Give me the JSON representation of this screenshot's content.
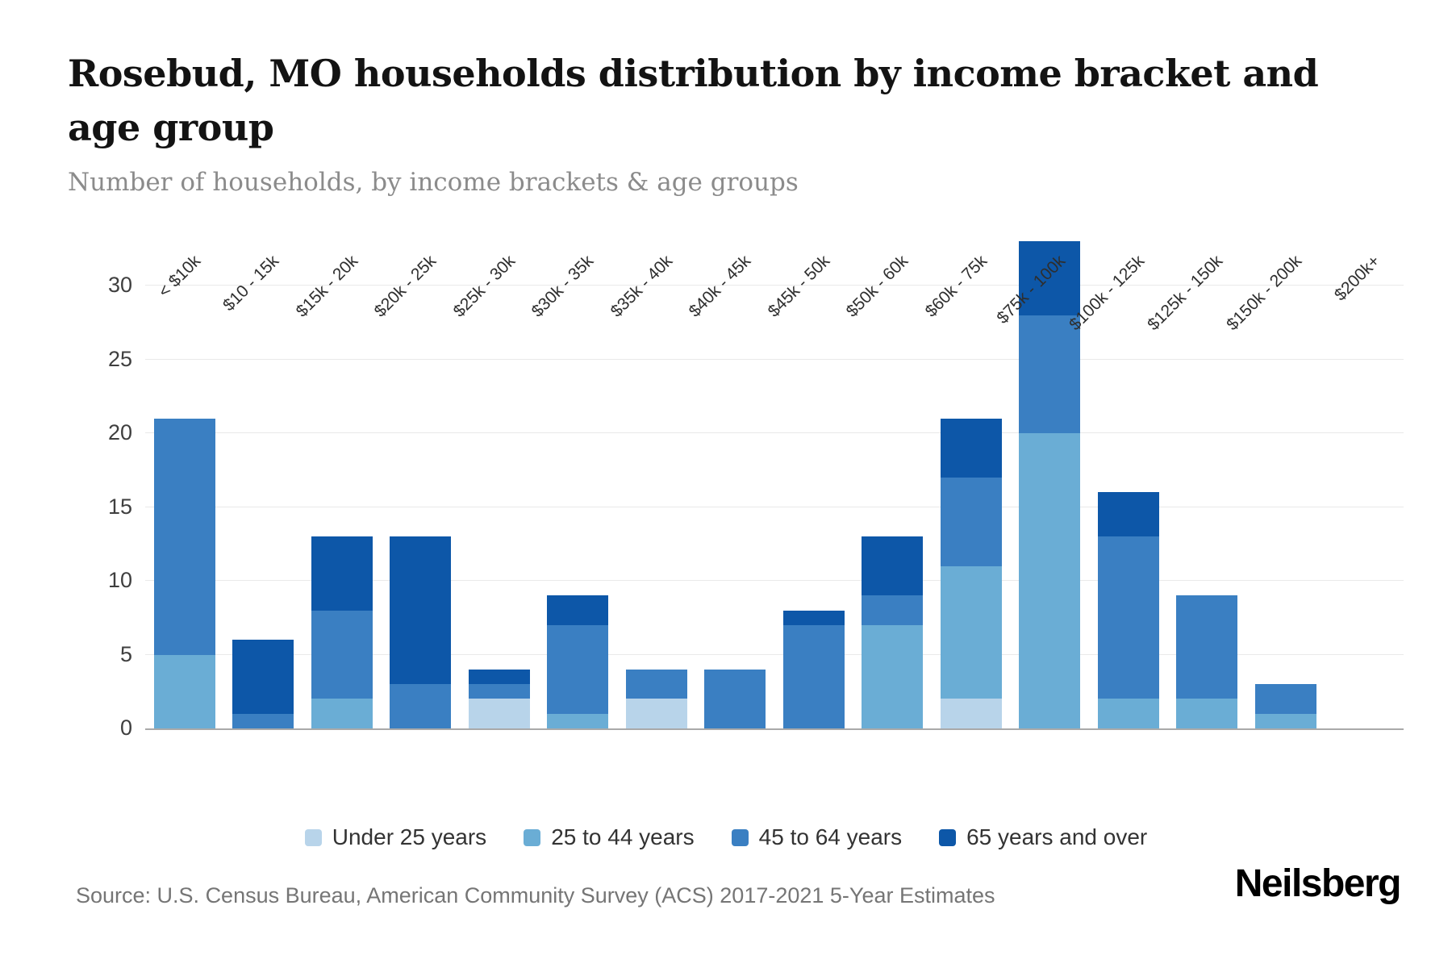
{
  "header": {
    "title": "Rosebud, MO households distribution by income bracket and age group",
    "subtitle": "Number of households, by income brackets & age groups"
  },
  "chart_data": {
    "type": "bar",
    "stacked": true,
    "title": "Rosebud, MO households distribution by income bracket and age group",
    "xlabel": "",
    "ylabel": "Number of households",
    "categories": [
      "< $10k",
      "$10 - 15k",
      "$15k - 20k",
      "$20k - 25k",
      "$25k - 30k",
      "$30k - 35k",
      "$35k - 40k",
      "$40k - 45k",
      "$45k - 50k",
      "$50k - 60k",
      "$60k - 75k",
      "$75k - 100k",
      "$100k - 125k",
      "$125k - 150k",
      "$150k - 200k",
      "$200k+"
    ],
    "series": [
      {
        "name": "Under 25 years",
        "color": "#b8d4ea",
        "values": [
          0,
          0,
          0,
          0,
          2,
          0,
          2,
          0,
          0,
          0,
          2,
          0,
          0,
          0,
          0,
          0
        ]
      },
      {
        "name": "25 to 44 years",
        "color": "#6aadd5",
        "values": [
          5,
          0,
          2,
          0,
          0,
          1,
          0,
          0,
          0,
          7,
          9,
          20,
          2,
          2,
          1,
          0
        ]
      },
      {
        "name": "45 to 64 years",
        "color": "#3a7fc2",
        "values": [
          16,
          1,
          6,
          3,
          1,
          6,
          2,
          4,
          7,
          2,
          6,
          8,
          11,
          7,
          2,
          0
        ]
      },
      {
        "name": "65 years and over",
        "color": "#0d57a8",
        "values": [
          0,
          5,
          5,
          10,
          1,
          2,
          0,
          0,
          1,
          4,
          4,
          5,
          3,
          0,
          0,
          0
        ]
      }
    ],
    "totals": [
      21,
      6,
      13,
      13,
      4,
      9,
      4,
      4,
      8,
      13,
      21,
      33,
      16,
      9,
      3,
      0
    ],
    "yticks": [
      0,
      5,
      10,
      15,
      20,
      25,
      30
    ],
    "ylim": [
      0,
      33
    ],
    "grid": true,
    "legend_position": "bottom"
  },
  "footer": {
    "source": "Source: U.S. Census Bureau, American Community Survey (ACS) 2017-2021 5-Year Estimates",
    "brand": "Neilsberg"
  }
}
